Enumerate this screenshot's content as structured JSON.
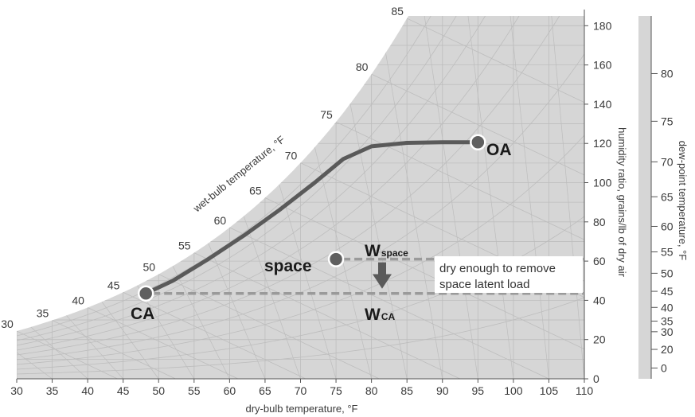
{
  "chart_data": {
    "type": "line",
    "x_axis": {
      "label": "dry-bulb temperature, °F",
      "range": [
        30,
        110
      ],
      "ticks": [
        "30",
        "35",
        "40",
        "45",
        "50",
        "55",
        "60",
        "65",
        "70",
        "75",
        "80",
        "85",
        "90",
        "95",
        "100",
        "105",
        "110"
      ]
    },
    "y_axis": {
      "label": "humidity ratio, grains/lb of dry air",
      "range": [
        0,
        185
      ],
      "ticks": [
        "0",
        "20",
        "40",
        "60",
        "80",
        "100",
        "120",
        "140",
        "160",
        "180"
      ]
    },
    "dewpoint_axis": {
      "label": "dew-point temperature, °F",
      "ticks": [
        {
          "label": "80",
          "w": 155.6
        },
        {
          "label": "75",
          "w": 131.3
        },
        {
          "label": "70",
          "w": 110.6
        },
        {
          "label": "65",
          "w": 92.8
        },
        {
          "label": "60",
          "w": 77.7
        },
        {
          "label": "55",
          "w": 64.7
        },
        {
          "label": "50",
          "w": 53.8
        },
        {
          "label": "45",
          "w": 44.6
        },
        {
          "label": "40",
          "w": 36.4
        },
        {
          "label": "35",
          "w": 29.4
        },
        {
          "label": "30",
          "w": 24.0
        },
        {
          "label": "20",
          "w": 15.0
        },
        {
          "label": "0",
          "w": 5.5
        }
      ]
    },
    "wetbulb_axis": {
      "label": "wet-bulb temperature, °F",
      "ticks": [
        "30",
        "35",
        "40",
        "45",
        "50",
        "55",
        "60",
        "65",
        "70",
        "75",
        "80",
        "85"
      ]
    },
    "grid": true,
    "series": [
      {
        "x": [
          48.2,
          52,
          57,
          62,
          67,
          72,
          76,
          80,
          85,
          90,
          95
        ],
        "y": [
          43.5,
          50,
          61,
          73,
          86,
          100,
          112,
          118.5,
          120.3,
          120.6,
          120.6
        ]
      }
    ],
    "points": [
      {
        "label": "OA",
        "x": 95,
        "y": 120.6
      },
      {
        "label": "space",
        "x": 75,
        "y": 61
      },
      {
        "label": "CA",
        "x": 48.2,
        "y": 43.5
      }
    ],
    "w_lines": [
      {
        "label": "W",
        "sub": "space",
        "y": 61
      },
      {
        "label": "W",
        "sub": "CA",
        "y": 43.5
      }
    ],
    "annotation": [
      "dry enough to remove",
      "space latent load"
    ]
  },
  "colors": {
    "chart_fill": "#d6d6d6",
    "grid": "#bdbdbd",
    "process_line": "#5a5a5a",
    "dashed": "#9a9a9a",
    "point": "#5f5f5f",
    "arrow": "#5a5a5a",
    "text": "#3a3a3a"
  }
}
